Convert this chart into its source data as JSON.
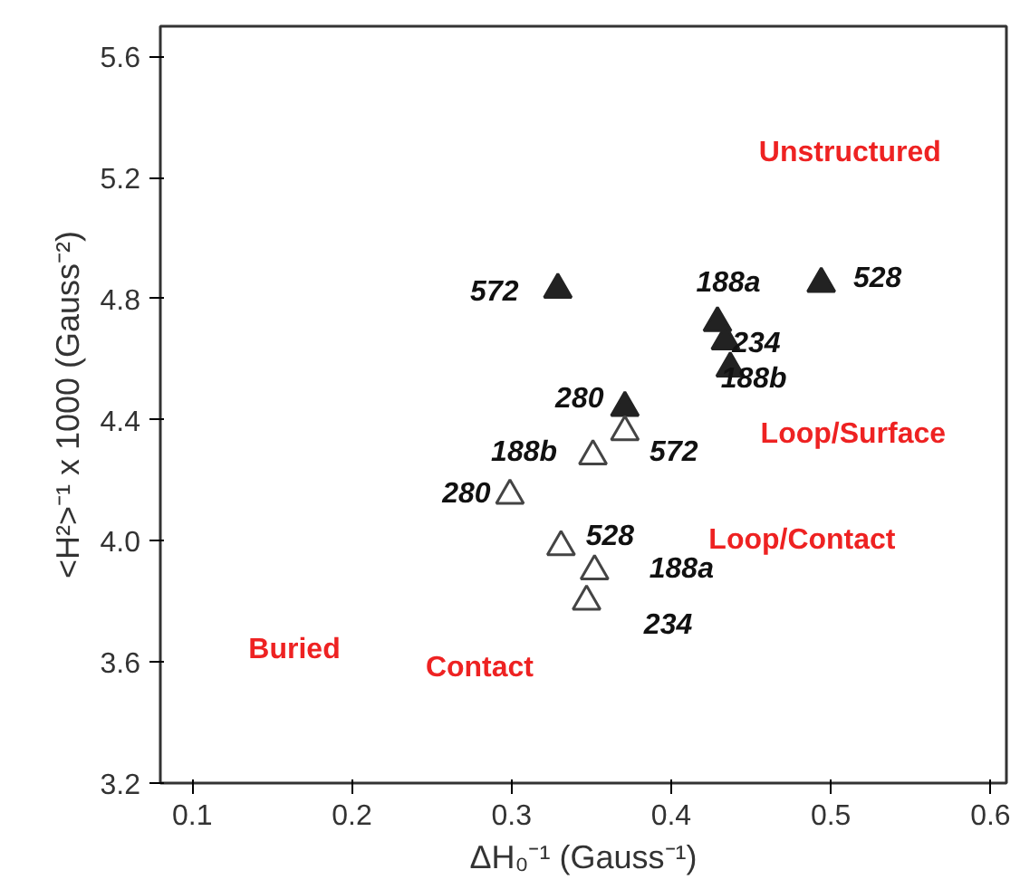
{
  "chart_data": {
    "type": "scatter",
    "xlabel": "ΔH₀⁻¹ (Gauss⁻¹)",
    "ylabel": "<H²>⁻¹ x 1000 (Gauss⁻²)",
    "xlim": [
      0.08,
      0.61
    ],
    "ylim": [
      3.2,
      5.7
    ],
    "xticks": [
      0.1,
      0.2,
      0.3,
      0.4,
      0.5,
      0.6
    ],
    "yticks": [
      3.2,
      3.6,
      {
        "value": 4,
        "label": "4.0"
      },
      4.4,
      4.8,
      5.2,
      5.6
    ],
    "grid": false,
    "marker": "triangle",
    "series": [
      {
        "color": "#222222",
        "x": [
          0.329,
          0.494,
          0.429,
          0.434,
          0.437,
          0.371
        ],
        "values": [
          4.83,
          4.85,
          4.72,
          4.66,
          4.57,
          4.44
        ]
      },
      {
        "color": "#444444",
        "x": [
          0.371,
          0.351,
          0.299,
          0.331,
          0.352,
          0.347
        ],
        "values": [
          4.36,
          4.28,
          4.15,
          3.98,
          3.9,
          3.8
        ]
      }
    ],
    "annotations": [
      {
        "text": "572",
        "x": 0.329,
        "y": 4.83
      },
      {
        "text": "188a",
        "x": 0.429,
        "y": 4.72
      },
      {
        "text": "528",
        "x": 0.494,
        "y": 4.85
      },
      {
        "text": "234",
        "x": 0.434,
        "y": 4.66
      },
      {
        "text": "188b",
        "x": 0.437,
        "y": 4.57
      },
      {
        "text": "280",
        "x": 0.371,
        "y": 4.44
      },
      {
        "text": "188b",
        "x": 0.351,
        "y": 4.28
      },
      {
        "text": "572",
        "x": 0.371,
        "y": 4.36
      },
      {
        "text": "280",
        "x": 0.299,
        "y": 4.15
      },
      {
        "text": "528",
        "x": 0.331,
        "y": 3.98
      },
      {
        "text": "188a",
        "x": 0.352,
        "y": 3.9
      },
      {
        "text": "234",
        "x": 0.347,
        "y": 3.8
      },
      "Unstructured",
      "Loop/Surface",
      "Loop/Contact",
      "Buried",
      "Contact"
    ]
  }
}
